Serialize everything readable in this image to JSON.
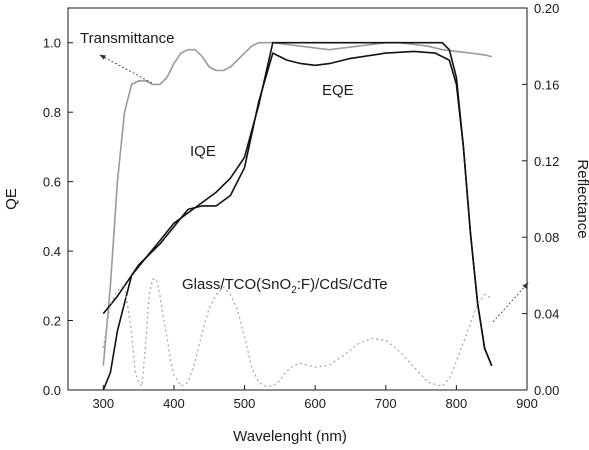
{
  "chart_data": {
    "type": "line",
    "title": "",
    "xlabel": "Wavelenght (nm)",
    "ylabel": "QE",
    "y2label": "Reflectance",
    "xlim": [
      250,
      900
    ],
    "ylim": [
      0.0,
      1.1
    ],
    "y2lim": [
      0.0,
      0.2
    ],
    "xticks": [
      "300",
      "400",
      "500",
      "600",
      "700",
      "800",
      "900"
    ],
    "yticks": [
      "0.0",
      "0.2",
      "0.4",
      "0.6",
      "0.8",
      "1.0"
    ],
    "y2ticks": [
      "0.00",
      "0.04",
      "0.08",
      "0.12",
      "0.16",
      "0.20"
    ],
    "grid": false,
    "annotations": {
      "transmittance": "Transmittance",
      "iqe": "IQE",
      "eqe": "EQE",
      "structure_prefix": "Glass/TCO(SnO",
      "structure_sub": "2",
      "structure_suffix": ":F)/CdS/CdTe"
    },
    "series": [
      {
        "name": "Transmittance",
        "axis": "left",
        "color": "#9a9a9a",
        "style": "solid",
        "x": [
          300,
          310,
          320,
          330,
          340,
          350,
          360,
          370,
          380,
          390,
          400,
          410,
          420,
          430,
          440,
          450,
          460,
          470,
          480,
          490,
          500,
          510,
          520,
          530,
          540,
          560,
          580,
          600,
          620,
          640,
          660,
          680,
          700,
          720,
          740,
          760,
          780,
          800,
          820,
          840,
          850
        ],
        "y": [
          0.07,
          0.3,
          0.6,
          0.8,
          0.88,
          0.89,
          0.89,
          0.88,
          0.88,
          0.9,
          0.94,
          0.97,
          0.98,
          0.98,
          0.96,
          0.93,
          0.92,
          0.92,
          0.93,
          0.95,
          0.97,
          0.99,
          1.0,
          1.0,
          1.0,
          0.995,
          0.99,
          0.985,
          0.98,
          0.985,
          0.99,
          0.995,
          1.0,
          1.0,
          0.995,
          0.99,
          0.98,
          0.975,
          0.97,
          0.965,
          0.96
        ]
      },
      {
        "name": "IQE",
        "axis": "left",
        "color": "#111111",
        "style": "solid",
        "x": [
          300,
          320,
          340,
          360,
          380,
          400,
          420,
          440,
          460,
          480,
          500,
          520,
          540,
          560,
          600,
          650,
          700,
          750,
          780,
          790,
          800,
          810,
          820,
          830,
          840,
          850
        ],
        "y": [
          0.22,
          0.27,
          0.33,
          0.38,
          0.43,
          0.48,
          0.51,
          0.54,
          0.57,
          0.61,
          0.67,
          0.82,
          1.0,
          1.0,
          1.0,
          1.0,
          1.0,
          1.0,
          1.0,
          0.98,
          0.9,
          0.7,
          0.45,
          0.25,
          0.12,
          0.07
        ]
      },
      {
        "name": "EQE",
        "axis": "left",
        "color": "#111111",
        "style": "solid",
        "x": [
          300,
          310,
          320,
          330,
          340,
          350,
          360,
          370,
          380,
          400,
          420,
          440,
          460,
          480,
          500,
          520,
          540,
          560,
          580,
          600,
          620,
          650,
          700,
          740,
          770,
          790,
          800,
          810,
          820,
          830,
          840,
          850
        ],
        "y": [
          0.0,
          0.05,
          0.17,
          0.25,
          0.33,
          0.36,
          0.38,
          0.4,
          0.42,
          0.47,
          0.52,
          0.53,
          0.53,
          0.56,
          0.64,
          0.83,
          0.97,
          0.95,
          0.94,
          0.935,
          0.94,
          0.955,
          0.97,
          0.975,
          0.97,
          0.95,
          0.88,
          0.7,
          0.45,
          0.25,
          0.12,
          0.07
        ]
      },
      {
        "name": "Reflectance",
        "axis": "right",
        "color": "#a8a8a8",
        "style": "dotted",
        "x": [
          300,
          310,
          320,
          330,
          340,
          345,
          350,
          355,
          360,
          365,
          370,
          375,
          380,
          385,
          390,
          395,
          400,
          410,
          420,
          430,
          440,
          450,
          460,
          470,
          480,
          490,
          500,
          510,
          520,
          530,
          540,
          550,
          560,
          570,
          580,
          600,
          620,
          640,
          660,
          680,
          700,
          720,
          740,
          760,
          780,
          790,
          800,
          810,
          820,
          830,
          840,
          850
        ],
        "y": [
          0.022,
          0.045,
          0.052,
          0.055,
          0.03,
          0.01,
          0.004,
          0.002,
          0.025,
          0.05,
          0.058,
          0.058,
          0.05,
          0.038,
          0.028,
          0.016,
          0.008,
          0.002,
          0.004,
          0.015,
          0.03,
          0.043,
          0.05,
          0.054,
          0.05,
          0.042,
          0.028,
          0.012,
          0.004,
          0.002,
          0.002,
          0.005,
          0.01,
          0.013,
          0.014,
          0.012,
          0.013,
          0.018,
          0.024,
          0.027,
          0.026,
          0.02,
          0.012,
          0.004,
          0.002,
          0.006,
          0.015,
          0.025,
          0.035,
          0.045,
          0.05,
          0.048
        ]
      }
    ]
  }
}
